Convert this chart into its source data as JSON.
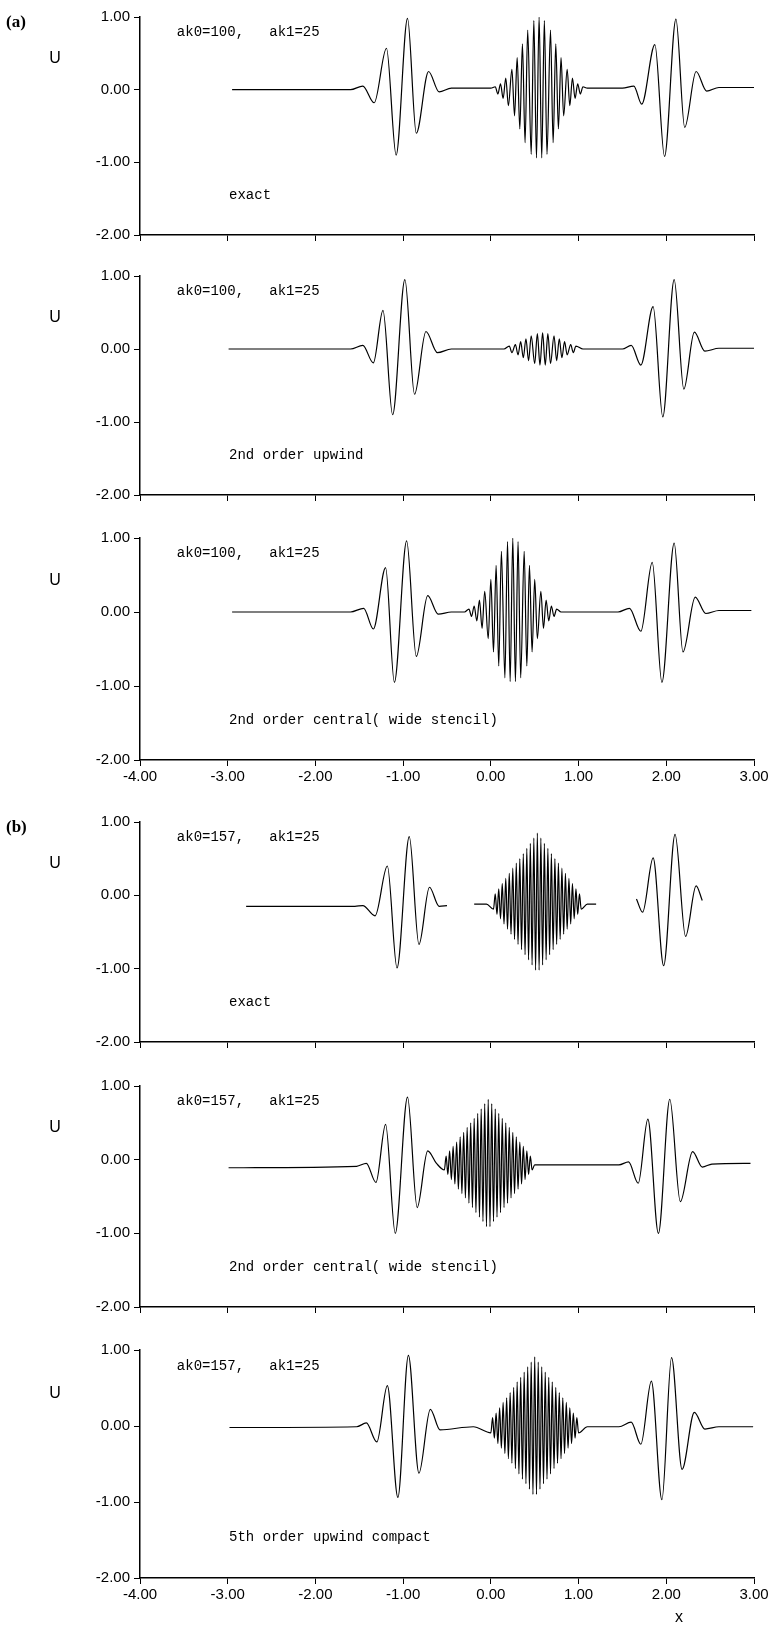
{
  "chart_data": [
    {
      "type": "line",
      "title": "(a)",
      "ylabel": "U",
      "annotations": [
        "ak0=100,   ak1=25",
        "exact"
      ],
      "xlim": [
        -4,
        3
      ],
      "ylim": [
        -2,
        1
      ],
      "tick_labels": "y",
      "marker": "none",
      "line_style": "solid",
      "xticks": [
        {
          "value": -4,
          "label": null
        },
        {
          "value": -3,
          "label": null
        },
        {
          "value": -2,
          "label": null
        },
        {
          "value": -1,
          "label": null
        },
        {
          "value": 0,
          "label": null
        },
        {
          "value": 1,
          "label": null
        },
        {
          "value": 2,
          "label": null
        },
        {
          "value": 3,
          "label": null
        }
      ],
      "yticks": [
        {
          "value": -2,
          "label": "-2.00"
        },
        {
          "value": -1,
          "label": "-1.00"
        },
        {
          "value": 0,
          "label": "0.00"
        },
        {
          "value": 1,
          "label": "1.00"
        }
      ],
      "series": [
        {
          "color": "#000000",
          "x": [
            -2.95,
            -1.6,
            -1.46,
            -1.33,
            -1.19,
            -1.08,
            -0.95,
            -0.85,
            -0.71,
            -0.59,
            -0.45,
            0.0,
            0.05,
            0.08,
            0.11,
            0.14,
            0.17,
            0.2,
            0.24,
            0.27,
            0.3,
            0.33,
            0.36,
            0.39,
            0.42,
            0.46,
            0.49,
            0.52,
            0.55,
            0.58,
            0.61,
            0.64,
            0.68,
            0.71,
            0.74,
            0.77,
            0.8,
            0.83,
            0.87,
            0.9,
            0.93,
            0.96,
            0.99,
            1.02,
            1.05,
            1.1,
            1.5,
            1.63,
            1.72,
            1.87,
            1.98,
            2.11,
            2.21,
            2.34,
            2.46,
            2.6,
            3.0
          ],
          "values": [
            0,
            0,
            0.05,
            -0.18,
            0.57,
            -0.9,
            0.98,
            -0.6,
            0.25,
            -0.03,
            0.02,
            0.02,
            0.04,
            -0.06,
            0.08,
            -0.12,
            0.16,
            -0.22,
            0.28,
            -0.36,
            0.44,
            -0.54,
            0.63,
            -0.73,
            0.82,
            -0.89,
            0.95,
            -0.94,
            1.0,
            -0.94,
            0.95,
            -0.89,
            0.82,
            -0.73,
            0.63,
            -0.54,
            0.44,
            -0.36,
            0.28,
            -0.22,
            0.16,
            -0.12,
            0.08,
            -0.06,
            0.04,
            0.02,
            0.02,
            0.05,
            -0.2,
            0.62,
            -0.92,
            0.97,
            -0.52,
            0.25,
            -0.02,
            0.03,
            0.03
          ]
        }
      ]
    },
    {
      "type": "line",
      "ylabel": "U",
      "annotations": [
        "ak0=100,   ak1=25",
        "2nd order upwind"
      ],
      "xlim": [
        -4,
        3
      ],
      "ylim": [
        -2,
        1
      ],
      "tick_labels": "y",
      "marker": "none",
      "line_style": "solid",
      "xticks": [
        {
          "value": -4,
          "label": null
        },
        {
          "value": -3,
          "label": null
        },
        {
          "value": -2,
          "label": null
        },
        {
          "value": -1,
          "label": null
        },
        {
          "value": 0,
          "label": null
        },
        {
          "value": 1,
          "label": null
        },
        {
          "value": 2,
          "label": null
        },
        {
          "value": 3,
          "label": null
        }
      ],
      "yticks": [
        {
          "value": -2,
          "label": "-2.00"
        },
        {
          "value": -1,
          "label": "-1.00"
        },
        {
          "value": 0,
          "label": "0.00"
        },
        {
          "value": 1,
          "label": "1.00"
        }
      ],
      "series": [
        {
          "color": "#000000",
          "x": [
            -2.99,
            -1.6,
            -1.46,
            -1.34,
            -1.23,
            -1.12,
            -0.98,
            -0.87,
            -0.74,
            -0.61,
            -0.45,
            0.15,
            0.21,
            0.24,
            0.28,
            0.31,
            0.34,
            0.37,
            0.4,
            0.43,
            0.46,
            0.5,
            0.53,
            0.56,
            0.59,
            0.62,
            0.65,
            0.68,
            0.72,
            0.75,
            0.78,
            0.81,
            0.84,
            0.87,
            0.91,
            0.94,
            0.97,
            1.05,
            1.5,
            1.6,
            1.71,
            1.85,
            1.96,
            2.09,
            2.2,
            2.32,
            2.44,
            2.6,
            3.0
          ],
          "values": [
            0,
            0,
            0.05,
            -0.19,
            0.53,
            -0.9,
            0.95,
            -0.62,
            0.24,
            -0.05,
            0,
            0,
            0.04,
            -0.05,
            0.06,
            -0.08,
            0.1,
            -0.12,
            0.14,
            -0.16,
            0.18,
            -0.2,
            0.21,
            -0.22,
            0.22,
            -0.22,
            0.21,
            -0.2,
            0.18,
            -0.16,
            0.14,
            -0.12,
            0.1,
            -0.08,
            0.06,
            -0.05,
            0.04,
            0,
            0,
            0.05,
            -0.22,
            0.58,
            -0.93,
            0.95,
            -0.55,
            0.23,
            -0.03,
            0.01,
            0.01
          ]
        }
      ]
    },
    {
      "type": "line",
      "ylabel": "U",
      "annotations": [
        "ak0=100,   ak1=25",
        "2nd order central( wide stencil)"
      ],
      "xlim": [
        -4,
        3
      ],
      "ylim": [
        -2,
        1
      ],
      "marker": "none",
      "line_style": "solid",
      "xticks": [
        {
          "value": -4,
          "label": "-4.00"
        },
        {
          "value": -3,
          "label": "-3.00"
        },
        {
          "value": -2,
          "label": "-2.00"
        },
        {
          "value": -1,
          "label": "-1.00"
        },
        {
          "value": 0,
          "label": "0.00"
        },
        {
          "value": 1,
          "label": "1.00"
        },
        {
          "value": 2,
          "label": "2.00"
        },
        {
          "value": 3,
          "label": "3.00"
        }
      ],
      "yticks": [
        {
          "value": -2,
          "label": "-2.00"
        },
        {
          "value": -1,
          "label": "-1.00"
        },
        {
          "value": 0,
          "label": "0.00"
        },
        {
          "value": 1,
          "label": "1.00"
        }
      ],
      "series": [
        {
          "color": "#000000",
          "x": [
            -2.95,
            -1.6,
            -1.45,
            -1.34,
            -1.2,
            -1.1,
            -0.96,
            -0.85,
            -0.72,
            -0.6,
            -0.45,
            -0.3,
            -0.25,
            -0.22,
            -0.19,
            -0.16,
            -0.13,
            -0.1,
            -0.07,
            -0.03,
            0.0,
            0.03,
            0.06,
            0.09,
            0.12,
            0.16,
            0.19,
            0.22,
            0.25,
            0.28,
            0.31,
            0.34,
            0.38,
            0.41,
            0.44,
            0.47,
            0.5,
            0.53,
            0.57,
            0.6,
            0.63,
            0.66,
            0.69,
            0.72,
            0.75,
            0.8,
            1.45,
            1.58,
            1.71,
            1.84,
            1.95,
            2.09,
            2.19,
            2.33,
            2.45,
            2.6,
            2.97
          ],
          "values": [
            0,
            0,
            0.05,
            -0.23,
            0.6,
            -0.95,
            0.96,
            -0.6,
            0.22,
            -0.03,
            0,
            0,
            0.04,
            -0.06,
            0.08,
            -0.12,
            0.16,
            -0.22,
            0.28,
            -0.36,
            0.44,
            -0.54,
            0.63,
            -0.73,
            0.82,
            -0.89,
            0.95,
            -0.94,
            1.0,
            -0.94,
            0.95,
            -0.89,
            0.82,
            -0.73,
            0.63,
            -0.54,
            0.44,
            -0.36,
            0.28,
            -0.22,
            0.16,
            -0.12,
            0.08,
            -0.06,
            0.04,
            0,
            0,
            0.05,
            -0.26,
            0.67,
            -0.95,
            0.93,
            -0.54,
            0.2,
            -0.02,
            0.02,
            0.02
          ]
        }
      ]
    },
    {
      "type": "line",
      "title": "(b)",
      "ylabel": "U",
      "annotations": [
        "ak0=157,   ak1=25",
        "exact"
      ],
      "xlim": [
        -4,
        3
      ],
      "ylim": [
        -2,
        1
      ],
      "tick_labels": "y",
      "marker": "none",
      "line_style": "solid",
      "xticks": [
        {
          "value": -4,
          "label": null
        },
        {
          "value": -3,
          "label": null
        },
        {
          "value": -2,
          "label": null
        },
        {
          "value": -1,
          "label": null
        },
        {
          "value": 0,
          "label": null
        },
        {
          "value": 1,
          "label": null
        },
        {
          "value": 2,
          "label": null
        },
        {
          "value": 3,
          "label": null
        }
      ],
      "yticks": [
        {
          "value": -2,
          "label": "-2.00"
        },
        {
          "value": -1,
          "label": "-1.00"
        },
        {
          "value": 0,
          "label": "0.00"
        },
        {
          "value": 1,
          "label": "1.00"
        }
      ],
      "series": [
        {
          "color": "#000000",
          "x": [
            -2.79,
            -1.55,
            -1.46,
            -1.32,
            -1.18,
            -1.07,
            -0.93,
            -0.82,
            -0.7,
            -0.59,
            -0.5,
            -0.35,
            -0.19,
            -0.05,
            0.03,
            0.05,
            0.07,
            0.09,
            0.11,
            0.13,
            0.15,
            0.17,
            0.19,
            0.21,
            0.23,
            0.25,
            0.27,
            0.29,
            0.31,
            0.33,
            0.35,
            0.37,
            0.39,
            0.41,
            0.43,
            0.45,
            0.47,
            0.49,
            0.51,
            0.53,
            0.55,
            0.57,
            0.59,
            0.61,
            0.63,
            0.65,
            0.67,
            0.69,
            0.71,
            0.73,
            0.75,
            0.77,
            0.79,
            0.81,
            0.83,
            0.85,
            0.87,
            0.89,
            0.91,
            0.93,
            0.95,
            0.97,
            0.99,
            1.01,
            1.03,
            1.1,
            1.2,
            1.4,
            1.66,
            1.73,
            1.85,
            1.97,
            2.1,
            2.22,
            2.34,
            2.41
          ],
          "values": [
            -0.15,
            -0.15,
            -0.14,
            -0.28,
            0.4,
            -0.99,
            0.8,
            -0.67,
            0.11,
            -0.15,
            -0.14,
            null,
            -0.12,
            -0.12,
            -0.19,
            0.02,
            -0.26,
            0.09,
            -0.32,
            0.16,
            -0.39,
            0.23,
            -0.46,
            0.3,
            -0.53,
            0.37,
            -0.6,
            0.44,
            -0.67,
            0.5,
            -0.74,
            0.57,
            -0.81,
            0.64,
            -0.88,
            0.71,
            -0.95,
            0.78,
            -1.02,
            0.85,
            -1.02,
            0.78,
            -0.95,
            0.71,
            -0.88,
            0.64,
            -0.81,
            0.57,
            -0.74,
            0.5,
            -0.67,
            0.44,
            -0.6,
            0.37,
            -0.53,
            0.3,
            -0.46,
            0.23,
            -0.39,
            0.16,
            -0.32,
            0.09,
            -0.26,
            0.02,
            -0.19,
            -0.12,
            -0.12,
            null,
            -0.05,
            -0.23,
            0.51,
            -0.96,
            0.83,
            -0.56,
            0.13,
            -0.07
          ]
        }
      ]
    },
    {
      "type": "line",
      "ylabel": "U",
      "annotations": [
        "ak0=157,   ak1=25",
        "2nd order central( wide stencil)"
      ],
      "xlim": [
        -4,
        3
      ],
      "ylim": [
        -2,
        1
      ],
      "tick_labels": "y",
      "marker": "none",
      "line_style": "solid",
      "xticks": [
        {
          "value": -4,
          "label": null
        },
        {
          "value": -3,
          "label": null
        },
        {
          "value": -2,
          "label": null
        },
        {
          "value": -1,
          "label": null
        },
        {
          "value": 0,
          "label": null
        },
        {
          "value": 1,
          "label": null
        },
        {
          "value": 2,
          "label": null
        },
        {
          "value": 3,
          "label": null
        }
      ],
      "yticks": [
        {
          "value": -2,
          "label": "-2.00"
        },
        {
          "value": -1,
          "label": "-1.00"
        },
        {
          "value": 0,
          "label": "0.00"
        },
        {
          "value": 1,
          "label": "1.00"
        }
      ],
      "series": [
        {
          "color": "#000000",
          "x": [
            -2.99,
            -1.53,
            -1.42,
            -1.31,
            -1.2,
            -1.09,
            -0.95,
            -0.84,
            -0.72,
            -0.62,
            -0.53,
            -0.51,
            -0.49,
            -0.47,
            -0.45,
            -0.43,
            -0.41,
            -0.39,
            -0.37,
            -0.35,
            -0.33,
            -0.31,
            -0.29,
            -0.27,
            -0.25,
            -0.23,
            -0.21,
            -0.19,
            -0.17,
            -0.15,
            -0.13,
            -0.11,
            -0.09,
            -0.07,
            -0.05,
            -0.03,
            -0.01,
            0.01,
            0.03,
            0.05,
            0.07,
            0.09,
            0.11,
            0.13,
            0.15,
            0.17,
            0.19,
            0.21,
            0.23,
            0.25,
            0.27,
            0.29,
            0.31,
            0.33,
            0.35,
            0.37,
            0.39,
            0.41,
            0.43,
            0.45,
            0.47,
            0.5,
            1.46,
            1.57,
            1.68,
            1.79,
            1.91,
            2.04,
            2.16,
            2.3,
            2.41,
            2.52,
            2.96
          ],
          "values": [
            -0.11,
            -0.09,
            -0.05,
            -0.31,
            0.48,
            -1.0,
            0.85,
            -0.65,
            0.12,
            -0.05,
            -0.14,
            0.05,
            -0.2,
            0.12,
            -0.27,
            0.18,
            -0.33,
            0.24,
            -0.4,
            0.31,
            -0.46,
            0.37,
            -0.52,
            0.44,
            -0.59,
            0.5,
            -0.65,
            0.56,
            -0.72,
            0.63,
            -0.78,
            0.69,
            -0.84,
            0.76,
            -0.91,
            0.82,
            -0.91,
            0.76,
            -0.84,
            0.69,
            -0.78,
            0.63,
            -0.72,
            0.56,
            -0.65,
            0.5,
            -0.59,
            0.44,
            -0.52,
            0.37,
            -0.46,
            0.31,
            -0.4,
            0.24,
            -0.33,
            0.18,
            -0.27,
            0.12,
            -0.2,
            0.05,
            -0.14,
            -0.07,
            -0.07,
            -0.03,
            -0.32,
            0.55,
            -1.0,
            0.82,
            -0.57,
            0.11,
            -0.1,
            -0.06,
            -0.05
          ]
        }
      ]
    },
    {
      "type": "line",
      "ylabel": "U",
      "xlabel": "x",
      "annotations": [
        "ak0=157,   ak1=25",
        "5th order upwind compact"
      ],
      "xlim": [
        -4,
        3
      ],
      "ylim": [
        -2,
        1
      ],
      "marker": "none",
      "line_style": "solid",
      "xticks": [
        {
          "value": -4,
          "label": "-4.00"
        },
        {
          "value": -3,
          "label": "-3.00"
        },
        {
          "value": -2,
          "label": "-2.00"
        },
        {
          "value": -1,
          "label": "-1.00"
        },
        {
          "value": 0,
          "label": "0.00"
        },
        {
          "value": 1,
          "label": "1.00"
        },
        {
          "value": 2,
          "label": "2.00"
        },
        {
          "value": 3,
          "label": "3.00"
        }
      ],
      "yticks": [
        {
          "value": -2,
          "label": "-2.00"
        },
        {
          "value": -1,
          "label": "-1.00"
        },
        {
          "value": 0,
          "label": "0.00"
        },
        {
          "value": 1,
          "label": "1.00"
        }
      ],
      "series": [
        {
          "color": "#000000",
          "x": [
            -2.98,
            -1.53,
            -1.42,
            -1.3,
            -1.18,
            -1.06,
            -0.94,
            -0.82,
            -0.69,
            -0.58,
            -0.2,
            0.0,
            0.02,
            0.04,
            0.06,
            0.08,
            0.1,
            0.12,
            0.14,
            0.16,
            0.18,
            0.2,
            0.22,
            0.24,
            0.26,
            0.28,
            0.3,
            0.32,
            0.34,
            0.36,
            0.38,
            0.4,
            0.42,
            0.44,
            0.46,
            0.48,
            0.5,
            0.52,
            0.54,
            0.56,
            0.58,
            0.6,
            0.62,
            0.64,
            0.66,
            0.68,
            0.7,
            0.72,
            0.74,
            0.76,
            0.78,
            0.8,
            0.82,
            0.84,
            0.86,
            0.88,
            0.9,
            0.92,
            0.94,
            0.96,
            0.98,
            1.0,
            1.1,
            1.46,
            1.6,
            1.71,
            1.83,
            1.95,
            2.06,
            2.18,
            2.32,
            2.44,
            2.6,
            2.99
          ],
          "values": [
            -0.02,
            -0.01,
            0.04,
            -0.21,
            0.53,
            -0.94,
            0.93,
            -0.62,
            0.22,
            -0.05,
            -0.01,
            -0.09,
            0.11,
            -0.16,
            0.17,
            -0.23,
            0.24,
            -0.29,
            0.31,
            -0.36,
            0.37,
            -0.43,
            0.44,
            -0.49,
            0.51,
            -0.56,
            0.58,
            -0.63,
            0.64,
            -0.7,
            0.71,
            -0.76,
            0.78,
            -0.83,
            0.84,
            -0.9,
            0.91,
            -0.9,
            0.84,
            -0.83,
            0.78,
            -0.76,
            0.71,
            -0.7,
            0.64,
            -0.63,
            0.58,
            -0.56,
            0.51,
            -0.49,
            0.44,
            -0.43,
            0.37,
            -0.36,
            0.31,
            -0.29,
            0.24,
            -0.23,
            0.17,
            -0.16,
            0.11,
            -0.09,
            -0.01,
            -0.01,
            0.05,
            -0.24,
            0.59,
            -0.97,
            0.9,
            -0.57,
            0.18,
            -0.04,
            -0.01,
            -0.01
          ]
        }
      ]
    }
  ]
}
